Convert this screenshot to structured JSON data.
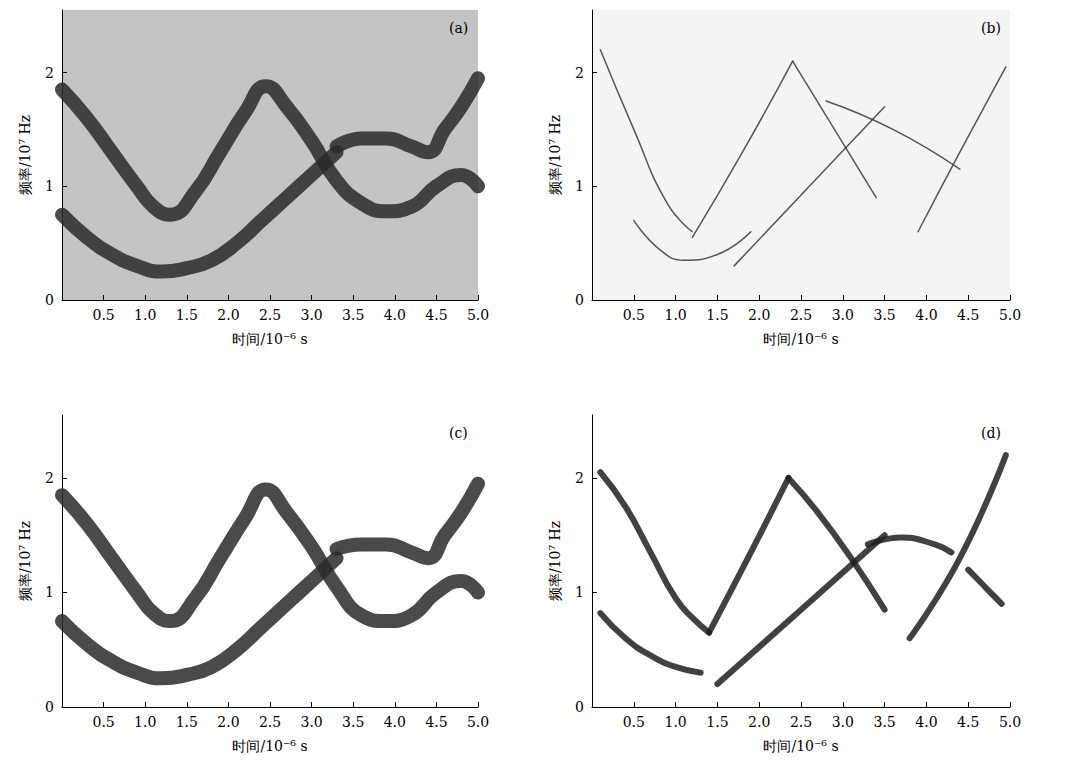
{
  "chart_data": [
    {
      "type": "line",
      "title": "(a)",
      "x_label": "时间/10⁻⁶ s",
      "y_label": "频率/10⁷ Hz",
      "xlim": [
        0,
        5
      ],
      "xticks": [
        0.5,
        {
          "value": 1,
          "label": "1.0"
        },
        1.5,
        {
          "value": 2,
          "label": "2.0"
        },
        2.5,
        {
          "value": 3,
          "label": "3.0"
        },
        3.5,
        {
          "value": 4,
          "label": "4.0"
        },
        4.5,
        {
          "value": 5,
          "label": "5.0"
        }
      ],
      "ylim": [
        0,
        2.55
      ],
      "yticks": [
        0,
        1,
        2
      ],
      "series": [
        {
          "color": "#2a2a2a",
          "x": [
            0,
            0.3,
            0.6,
            0.9,
            1.1,
            1.3,
            1.6,
            1.9,
            2.2,
            2.45,
            2.7,
            3.0,
            3.3,
            3.6,
            3.9,
            4.2,
            4.5,
            4.8,
            5.0
          ],
          "values": [
            1.85,
            1.6,
            1.3,
            1.0,
            0.82,
            0.75,
            0.95,
            1.3,
            1.65,
            1.88,
            1.7,
            1.4,
            1.05,
            0.85,
            0.78,
            0.82,
            1.0,
            1.1,
            1.0
          ]
        },
        {
          "color": "#2a2a2a",
          "x": [
            0,
            0.3,
            0.6,
            0.9,
            1.2,
            1.5,
            1.8,
            2.1,
            2.4,
            2.7,
            3.0,
            3.3
          ],
          "values": [
            0.75,
            0.55,
            0.4,
            0.3,
            0.25,
            0.28,
            0.35,
            0.5,
            0.7,
            0.9,
            1.1,
            1.3
          ]
        },
        {
          "color": "#2a2a2a",
          "x": [
            3.3,
            3.6,
            3.9,
            4.2,
            4.4,
            4.6,
            4.8,
            5.0
          ],
          "values": [
            1.35,
            1.42,
            1.42,
            1.35,
            1.3,
            1.5,
            1.7,
            1.95
          ]
        }
      ]
    },
    {
      "type": "line",
      "title": "(b)",
      "x_label": "时间/10⁻⁶ s",
      "y_label": "频率/10⁷ Hz",
      "xlim": [
        0,
        5
      ],
      "xticks": [
        0.5,
        {
          "value": 1,
          "label": "1.0"
        },
        1.5,
        {
          "value": 2,
          "label": "2.0"
        },
        2.5,
        {
          "value": 3,
          "label": "3.0"
        },
        3.5,
        {
          "value": 4,
          "label": "4.0"
        },
        4.5,
        {
          "value": 5,
          "label": "5.0"
        }
      ],
      "ylim": [
        0,
        2.55
      ],
      "yticks": [
        0,
        1,
        2
      ],
      "series": [
        {
          "color": "#3a3a3a",
          "x": [
            0.1,
            0.5,
            0.9,
            1.2
          ],
          "values": [
            2.2,
            1.5,
            0.85,
            0.6
          ]
        },
        {
          "color": "#3a3a3a",
          "x": [
            0.5,
            0.8,
            1.1,
            1.5,
            1.9
          ],
          "values": [
            0.7,
            0.45,
            0.35,
            0.4,
            0.6
          ]
        },
        {
          "color": "#3a3a3a",
          "x": [
            1.2,
            1.8,
            2.4
          ],
          "values": [
            0.55,
            1.3,
            2.1
          ]
        },
        {
          "color": "#3a3a3a",
          "x": [
            2.4,
            2.9,
            3.4
          ],
          "values": [
            2.1,
            1.5,
            0.9
          ]
        },
        {
          "color": "#3a3a3a",
          "x": [
            1.7,
            2.6,
            3.5
          ],
          "values": [
            0.3,
            1.0,
            1.7
          ]
        },
        {
          "color": "#3a3a3a",
          "x": [
            2.8,
            3.6,
            4.4
          ],
          "values": [
            1.75,
            1.5,
            1.15
          ]
        },
        {
          "color": "#3a3a3a",
          "x": [
            3.9,
            4.4,
            4.95
          ],
          "values": [
            0.6,
            1.3,
            2.05
          ]
        }
      ]
    },
    {
      "type": "line",
      "title": "(c)",
      "x_label": "时间/10⁻⁶ s",
      "y_label": "频率/10⁷ Hz",
      "xlim": [
        0,
        5
      ],
      "xticks": [
        0.5,
        {
          "value": 1,
          "label": "1.0"
        },
        1.5,
        {
          "value": 2,
          "label": "2.0"
        },
        2.5,
        {
          "value": 3,
          "label": "3.0"
        },
        3.5,
        {
          "value": 4,
          "label": "4.0"
        },
        4.5,
        {
          "value": 5,
          "label": "5.0"
        }
      ],
      "ylim": [
        0,
        2.55
      ],
      "yticks": [
        0,
        1,
        2
      ],
      "series": [
        {
          "color": "#2a2a2a",
          "x": [
            0,
            0.3,
            0.6,
            0.9,
            1.1,
            1.3,
            1.6,
            1.9,
            2.2,
            2.45,
            2.7,
            3.0,
            3.3,
            3.6,
            3.9,
            4.2,
            4.5,
            4.8,
            5.0
          ],
          "values": [
            1.85,
            1.6,
            1.3,
            1.0,
            0.82,
            0.75,
            0.95,
            1.3,
            1.65,
            1.9,
            1.7,
            1.4,
            1.05,
            0.8,
            0.75,
            0.8,
            1.0,
            1.1,
            1.0
          ]
        },
        {
          "color": "#2a2a2a",
          "x": [
            0,
            0.3,
            0.6,
            0.9,
            1.2,
            1.5,
            1.8,
            2.1,
            2.4,
            2.7,
            3.0,
            3.3
          ],
          "values": [
            0.75,
            0.55,
            0.4,
            0.3,
            0.25,
            0.28,
            0.35,
            0.5,
            0.7,
            0.9,
            1.1,
            1.3
          ]
        },
        {
          "color": "#2a2a2a",
          "x": [
            3.3,
            3.6,
            3.9,
            4.2,
            4.4,
            4.6,
            4.8,
            5.0
          ],
          "values": [
            1.38,
            1.42,
            1.42,
            1.35,
            1.3,
            1.5,
            1.7,
            1.95
          ]
        }
      ]
    },
    {
      "type": "line",
      "title": "(d)",
      "x_label": "时间/10⁻⁶ s",
      "y_label": "频率/10⁷ Hz",
      "xlim": [
        0,
        5
      ],
      "xticks": [
        0.5,
        {
          "value": 1,
          "label": "1.0"
        },
        1.5,
        {
          "value": 2,
          "label": "2.0"
        },
        2.5,
        {
          "value": 3,
          "label": "3.0"
        },
        3.5,
        {
          "value": 4,
          "label": "4.0"
        },
        4.5,
        {
          "value": 5,
          "label": "5.0"
        }
      ],
      "ylim": [
        0,
        2.55
      ],
      "yticks": [
        0,
        1,
        2
      ],
      "series": [
        {
          "color": "#202020",
          "x": [
            0.1,
            0.4,
            0.7,
            1.0,
            1.2,
            1.4
          ],
          "values": [
            2.05,
            1.75,
            1.35,
            0.95,
            0.78,
            0.65
          ]
        },
        {
          "color": "#202020",
          "x": [
            0.1,
            0.4,
            0.7,
            1.0,
            1.3
          ],
          "values": [
            0.82,
            0.6,
            0.45,
            0.35,
            0.3
          ]
        },
        {
          "color": "#202020",
          "x": [
            1.4,
            1.9,
            2.35
          ],
          "values": [
            0.65,
            1.35,
            2.0
          ]
        },
        {
          "color": "#202020",
          "x": [
            2.35,
            2.7,
            3.1,
            3.5
          ],
          "values": [
            2.0,
            1.7,
            1.3,
            0.85
          ]
        },
        {
          "color": "#202020",
          "x": [
            1.5,
            2.5,
            3.5
          ],
          "values": [
            0.2,
            0.85,
            1.5
          ]
        },
        {
          "color": "#202020",
          "x": [
            3.3,
            3.7,
            4.1,
            4.3
          ],
          "values": [
            1.42,
            1.48,
            1.42,
            1.35
          ]
        },
        {
          "color": "#202020",
          "x": [
            3.8,
            4.4,
            4.95
          ],
          "values": [
            0.6,
            1.3,
            2.2
          ]
        },
        {
          "color": "#202020",
          "x": [
            4.5,
            4.7,
            4.9
          ],
          "values": [
            1.2,
            1.05,
            0.9
          ]
        }
      ]
    }
  ]
}
